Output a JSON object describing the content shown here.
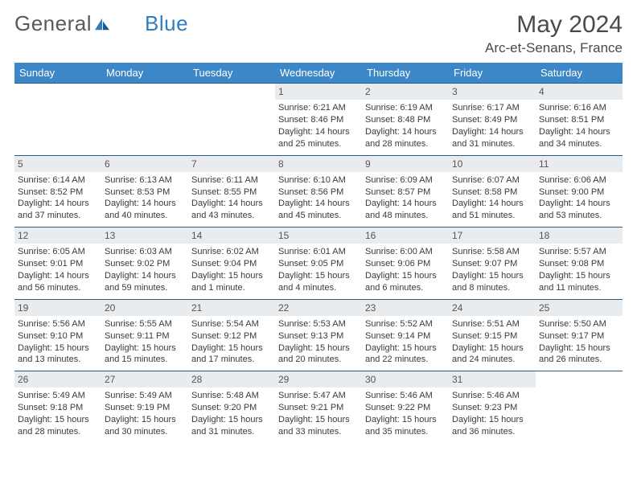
{
  "brand": {
    "part1": "General",
    "part2": "Blue"
  },
  "title": "May 2024",
  "location": "Arc-et-Senans, France",
  "colors": {
    "header_bg": "#3b87c8",
    "header_text": "#ffffff",
    "row_border": "#2d5a87",
    "daynum_bg": "#e9ecef",
    "text": "#3a3a3a",
    "brand_accent": "#2f7ec2"
  },
  "weekdays": [
    "Sunday",
    "Monday",
    "Tuesday",
    "Wednesday",
    "Thursday",
    "Friday",
    "Saturday"
  ],
  "weeks": [
    [
      {
        "day": "",
        "sunrise": "",
        "sunset": "",
        "daylight1": "",
        "daylight2": ""
      },
      {
        "day": "",
        "sunrise": "",
        "sunset": "",
        "daylight1": "",
        "daylight2": ""
      },
      {
        "day": "",
        "sunrise": "",
        "sunset": "",
        "daylight1": "",
        "daylight2": ""
      },
      {
        "day": "1",
        "sunrise": "Sunrise: 6:21 AM",
        "sunset": "Sunset: 8:46 PM",
        "daylight1": "Daylight: 14 hours",
        "daylight2": "and 25 minutes."
      },
      {
        "day": "2",
        "sunrise": "Sunrise: 6:19 AM",
        "sunset": "Sunset: 8:48 PM",
        "daylight1": "Daylight: 14 hours",
        "daylight2": "and 28 minutes."
      },
      {
        "day": "3",
        "sunrise": "Sunrise: 6:17 AM",
        "sunset": "Sunset: 8:49 PM",
        "daylight1": "Daylight: 14 hours",
        "daylight2": "and 31 minutes."
      },
      {
        "day": "4",
        "sunrise": "Sunrise: 6:16 AM",
        "sunset": "Sunset: 8:51 PM",
        "daylight1": "Daylight: 14 hours",
        "daylight2": "and 34 minutes."
      }
    ],
    [
      {
        "day": "5",
        "sunrise": "Sunrise: 6:14 AM",
        "sunset": "Sunset: 8:52 PM",
        "daylight1": "Daylight: 14 hours",
        "daylight2": "and 37 minutes."
      },
      {
        "day": "6",
        "sunrise": "Sunrise: 6:13 AM",
        "sunset": "Sunset: 8:53 PM",
        "daylight1": "Daylight: 14 hours",
        "daylight2": "and 40 minutes."
      },
      {
        "day": "7",
        "sunrise": "Sunrise: 6:11 AM",
        "sunset": "Sunset: 8:55 PM",
        "daylight1": "Daylight: 14 hours",
        "daylight2": "and 43 minutes."
      },
      {
        "day": "8",
        "sunrise": "Sunrise: 6:10 AM",
        "sunset": "Sunset: 8:56 PM",
        "daylight1": "Daylight: 14 hours",
        "daylight2": "and 45 minutes."
      },
      {
        "day": "9",
        "sunrise": "Sunrise: 6:09 AM",
        "sunset": "Sunset: 8:57 PM",
        "daylight1": "Daylight: 14 hours",
        "daylight2": "and 48 minutes."
      },
      {
        "day": "10",
        "sunrise": "Sunrise: 6:07 AM",
        "sunset": "Sunset: 8:58 PM",
        "daylight1": "Daylight: 14 hours",
        "daylight2": "and 51 minutes."
      },
      {
        "day": "11",
        "sunrise": "Sunrise: 6:06 AM",
        "sunset": "Sunset: 9:00 PM",
        "daylight1": "Daylight: 14 hours",
        "daylight2": "and 53 minutes."
      }
    ],
    [
      {
        "day": "12",
        "sunrise": "Sunrise: 6:05 AM",
        "sunset": "Sunset: 9:01 PM",
        "daylight1": "Daylight: 14 hours",
        "daylight2": "and 56 minutes."
      },
      {
        "day": "13",
        "sunrise": "Sunrise: 6:03 AM",
        "sunset": "Sunset: 9:02 PM",
        "daylight1": "Daylight: 14 hours",
        "daylight2": "and 59 minutes."
      },
      {
        "day": "14",
        "sunrise": "Sunrise: 6:02 AM",
        "sunset": "Sunset: 9:04 PM",
        "daylight1": "Daylight: 15 hours",
        "daylight2": "and 1 minute."
      },
      {
        "day": "15",
        "sunrise": "Sunrise: 6:01 AM",
        "sunset": "Sunset: 9:05 PM",
        "daylight1": "Daylight: 15 hours",
        "daylight2": "and 4 minutes."
      },
      {
        "day": "16",
        "sunrise": "Sunrise: 6:00 AM",
        "sunset": "Sunset: 9:06 PM",
        "daylight1": "Daylight: 15 hours",
        "daylight2": "and 6 minutes."
      },
      {
        "day": "17",
        "sunrise": "Sunrise: 5:58 AM",
        "sunset": "Sunset: 9:07 PM",
        "daylight1": "Daylight: 15 hours",
        "daylight2": "and 8 minutes."
      },
      {
        "day": "18",
        "sunrise": "Sunrise: 5:57 AM",
        "sunset": "Sunset: 9:08 PM",
        "daylight1": "Daylight: 15 hours",
        "daylight2": "and 11 minutes."
      }
    ],
    [
      {
        "day": "19",
        "sunrise": "Sunrise: 5:56 AM",
        "sunset": "Sunset: 9:10 PM",
        "daylight1": "Daylight: 15 hours",
        "daylight2": "and 13 minutes."
      },
      {
        "day": "20",
        "sunrise": "Sunrise: 5:55 AM",
        "sunset": "Sunset: 9:11 PM",
        "daylight1": "Daylight: 15 hours",
        "daylight2": "and 15 minutes."
      },
      {
        "day": "21",
        "sunrise": "Sunrise: 5:54 AM",
        "sunset": "Sunset: 9:12 PM",
        "daylight1": "Daylight: 15 hours",
        "daylight2": "and 17 minutes."
      },
      {
        "day": "22",
        "sunrise": "Sunrise: 5:53 AM",
        "sunset": "Sunset: 9:13 PM",
        "daylight1": "Daylight: 15 hours",
        "daylight2": "and 20 minutes."
      },
      {
        "day": "23",
        "sunrise": "Sunrise: 5:52 AM",
        "sunset": "Sunset: 9:14 PM",
        "daylight1": "Daylight: 15 hours",
        "daylight2": "and 22 minutes."
      },
      {
        "day": "24",
        "sunrise": "Sunrise: 5:51 AM",
        "sunset": "Sunset: 9:15 PM",
        "daylight1": "Daylight: 15 hours",
        "daylight2": "and 24 minutes."
      },
      {
        "day": "25",
        "sunrise": "Sunrise: 5:50 AM",
        "sunset": "Sunset: 9:17 PM",
        "daylight1": "Daylight: 15 hours",
        "daylight2": "and 26 minutes."
      }
    ],
    [
      {
        "day": "26",
        "sunrise": "Sunrise: 5:49 AM",
        "sunset": "Sunset: 9:18 PM",
        "daylight1": "Daylight: 15 hours",
        "daylight2": "and 28 minutes."
      },
      {
        "day": "27",
        "sunrise": "Sunrise: 5:49 AM",
        "sunset": "Sunset: 9:19 PM",
        "daylight1": "Daylight: 15 hours",
        "daylight2": "and 30 minutes."
      },
      {
        "day": "28",
        "sunrise": "Sunrise: 5:48 AM",
        "sunset": "Sunset: 9:20 PM",
        "daylight1": "Daylight: 15 hours",
        "daylight2": "and 31 minutes."
      },
      {
        "day": "29",
        "sunrise": "Sunrise: 5:47 AM",
        "sunset": "Sunset: 9:21 PM",
        "daylight1": "Daylight: 15 hours",
        "daylight2": "and 33 minutes."
      },
      {
        "day": "30",
        "sunrise": "Sunrise: 5:46 AM",
        "sunset": "Sunset: 9:22 PM",
        "daylight1": "Daylight: 15 hours",
        "daylight2": "and 35 minutes."
      },
      {
        "day": "31",
        "sunrise": "Sunrise: 5:46 AM",
        "sunset": "Sunset: 9:23 PM",
        "daylight1": "Daylight: 15 hours",
        "daylight2": "and 36 minutes."
      },
      {
        "day": "",
        "sunrise": "",
        "sunset": "",
        "daylight1": "",
        "daylight2": ""
      }
    ]
  ]
}
